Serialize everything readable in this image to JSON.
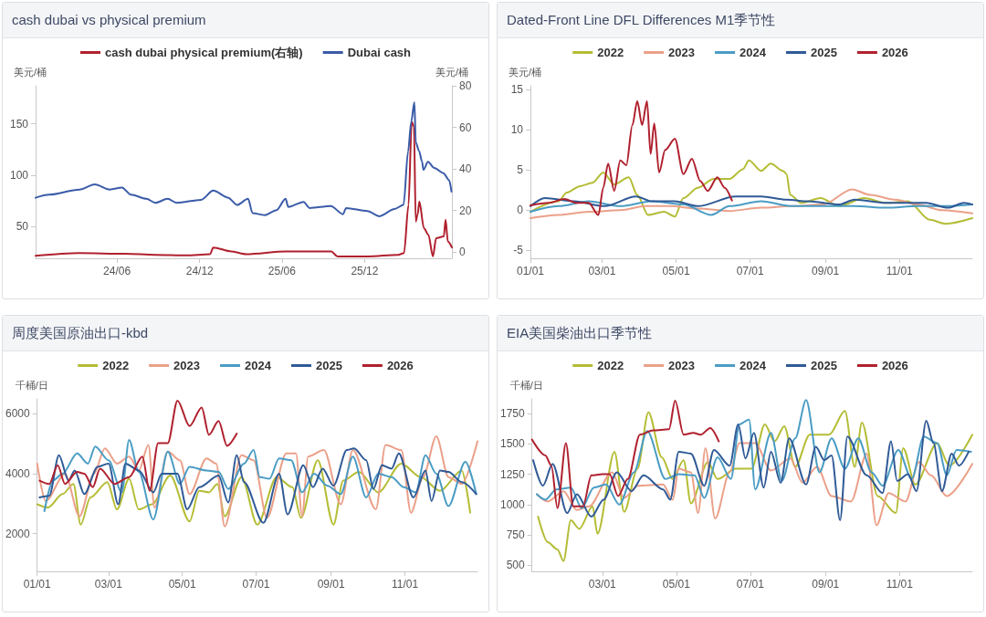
{
  "chart_data": [
    {
      "type": "line",
      "title": "cash dubai vs physical premium",
      "ylabel": "美元/桶",
      "y2label": "美元/桶",
      "legend": "top",
      "grid": false,
      "xlim": [
        "2023-12-04",
        "2026-06-12"
      ],
      "xticks": [
        {
          "value": "2024-06-01",
          "label": "24/06"
        },
        {
          "value": "2024-12-01",
          "label": "24/12"
        },
        {
          "value": "2025-06-01",
          "label": "25/06"
        },
        {
          "value": "2025-12-01",
          "label": "25/12"
        }
      ],
      "ylim": [
        19,
        187
      ],
      "yticks": [
        50,
        100,
        150
      ],
      "y2lim": [
        -3,
        80
      ],
      "y2ticks": [
        0,
        20,
        40,
        60,
        80
      ],
      "series": [
        {
          "name": "cash dubai physical premium(右轴)",
          "color": "#b0202e",
          "axis": "y2",
          "x": [
            "2023-12-04",
            "2024-03-10",
            "2024-06-19",
            "2024-08-25",
            "2024-11-01",
            "2024-12-24",
            "2024-12-31",
            "2025-02-09",
            "2025-03-14",
            "2025-06-10",
            "2025-09-18",
            "2025-10-02",
            "2025-12-08",
            "2026-02-13",
            "2026-02-26",
            "2026-03-08",
            "2026-03-15",
            "2026-03-20",
            "2026-03-24",
            "2026-03-28",
            "2026-04-01",
            "2026-04-11",
            "2026-04-21",
            "2026-05-01",
            "2026-05-08",
            "2026-05-25",
            "2026-05-29",
            "2026-06-03",
            "2026-06-12"
          ],
          "values": [
            -1.8,
            -0.5,
            -0.8,
            -1.3,
            -1.6,
            -1,
            2.2,
            0.3,
            -1,
            0.3,
            0.3,
            -2.1,
            -2.1,
            -1.3,
            -0.5,
            22.7,
            62.7,
            60.3,
            14.7,
            17.9,
            24.3,
            11.5,
            8.3,
            -2.1,
            6.7,
            7.5,
            15.5,
            5.1,
            2.2
          ]
        },
        {
          "name": "Dubai cash",
          "color": "#3a5ba8",
          "x": [
            "2023-12-04",
            "2024-01-03",
            "2024-03-10",
            "2024-04-13",
            "2024-05-16",
            "2024-06-12",
            "2024-07-02",
            "2024-08-05",
            "2024-08-25",
            "2024-09-21",
            "2024-10-11",
            "2024-12-04",
            "2024-12-31",
            "2025-02-02",
            "2025-02-22",
            "2025-03-18",
            "2025-03-28",
            "2025-04-24",
            "2025-05-20",
            "2025-06-09",
            "2025-06-15",
            "2025-07-19",
            "2025-08-01",
            "2025-09-17",
            "2025-10-14",
            "2025-10-21",
            "2025-12-07",
            "2026-01-03",
            "2026-02-05",
            "2026-02-25",
            "2026-03-07",
            "2026-03-14",
            "2026-03-21",
            "2026-03-24",
            "2026-03-31",
            "2026-04-07",
            "2026-04-10",
            "2026-04-20",
            "2026-05-04",
            "2026-05-24",
            "2026-06-06",
            "2026-06-11"
          ],
          "values": [
            78,
            81,
            86,
            91,
            86,
            88,
            81,
            77,
            73,
            77,
            73,
            76,
            85,
            78,
            71,
            77,
            63,
            61,
            66,
            77,
            69,
            74,
            68,
            70,
            62,
            68,
            65,
            60,
            67,
            71,
            123,
            152,
            171,
            132,
            124,
            113,
            105,
            113,
            107,
            102,
            95,
            84
          ]
        }
      ]
    },
    {
      "type": "line",
      "title": "Dated-Front Line DFL Differences M1季节性",
      "ylabel": "美元/桶",
      "legend": "top",
      "grid": false,
      "xlim": [
        "--01-01",
        "--12-31"
      ],
      "xticks": [
        {
          "value": "--01-01",
          "label": "01/01"
        },
        {
          "value": "--03-01",
          "label": "03/01"
        },
        {
          "value": "--05-01",
          "label": "05/01"
        },
        {
          "value": "--07-01",
          "label": "07/01"
        },
        {
          "value": "--09-01",
          "label": "09/01"
        },
        {
          "value": "--11-01",
          "label": "11/01"
        }
      ],
      "ylim": [
        -6,
        15.5
      ],
      "yticks": [
        -5,
        0,
        5,
        10,
        15
      ],
      "series": [
        {
          "name": "2022",
          "color": "#b4bd35",
          "x": [
            "--01-01",
            "--01-24",
            "--01-31",
            "--02-11",
            "--02-21",
            "--03-02",
            "--03-11",
            "--03-23",
            "--03-30",
            "--04-08",
            "--04-21",
            "--04-30",
            "--05-07",
            "--05-19",
            "--06-01",
            "--06-14",
            "--06-25",
            "--06-30",
            "--07-10",
            "--07-18",
            "--07-28",
            "--07-31",
            "--08-03",
            "--08-12",
            "--08-28",
            "--09-12",
            "--10-03",
            "--10-21",
            "--11-08",
            "--11-26",
            "--12-09",
            "--12-31"
          ],
          "values": [
            -0.2,
            1.1,
            2.2,
            3,
            3.4,
            4.7,
            3.2,
            4.1,
            1.9,
            -0.6,
            -0.2,
            -0.8,
            1.5,
            2.8,
            3.9,
            3.9,
            5.1,
            6.2,
            4.9,
            5.8,
            4.9,
            4.5,
            1.9,
            0.9,
            1.5,
            0.5,
            1.5,
            0.9,
            1.1,
            -1.2,
            -1.7,
            -1
          ]
        },
        {
          "name": "2023",
          "color": "#eba089",
          "x": [
            "--01-01",
            "--01-24",
            "--02-18",
            "--03-16",
            "--04-06",
            "--04-26",
            "--05-19",
            "--06-14",
            "--07-10",
            "--08-05",
            "--08-30",
            "--09-23",
            "--10-08",
            "--10-29",
            "--11-16",
            "--12-06",
            "--12-31"
          ],
          "values": [
            -1,
            -0.6,
            -0.2,
            0,
            0.5,
            0.5,
            0.2,
            -0.1,
            0.3,
            0.5,
            0.7,
            2.6,
            1.9,
            1.3,
            0.7,
            0,
            -0.4
          ]
        },
        {
          "name": "2024",
          "color": "#4a9cc4",
          "x": [
            "--01-01",
            "--01-24",
            "--02-18",
            "--03-16",
            "--04-11",
            "--05-07",
            "--05-30",
            "--06-14",
            "--07-10",
            "--08-05",
            "--08-30",
            "--09-25",
            "--10-21",
            "--11-16",
            "--12-11",
            "--12-31"
          ],
          "values": [
            -0.2,
            0.5,
            1.1,
            0.5,
            1.1,
            0.7,
            -0.6,
            0.5,
            1.1,
            0.5,
            0.5,
            0.5,
            0.3,
            0.5,
            0.5,
            0.7
          ]
        },
        {
          "name": "2025",
          "color": "#2f5a96",
          "x": [
            "--01-01",
            "--01-13",
            "--02-06",
            "--03-03",
            "--03-29",
            "--04-11",
            "--04-30",
            "--05-19",
            "--06-19",
            "--07-10",
            "--07-31",
            "--08-18",
            "--09-12",
            "--09-25",
            "--10-21",
            "--11-23",
            "--12-11",
            "--12-24",
            "--12-31"
          ],
          "values": [
            0.5,
            1.5,
            1.1,
            0.5,
            1.7,
            1.1,
            1.1,
            0.5,
            1.7,
            1.7,
            1.3,
            1.1,
            0.7,
            1.3,
            0.9,
            0.9,
            0.3,
            0.9,
            0.7
          ]
        },
        {
          "name": "2026",
          "color": "#b0202e",
          "x": [
            "--01-01",
            "--01-16",
            "--01-29",
            "--02-08",
            "--02-18",
            "--02-26",
            "--03-02",
            "--03-06",
            "--03-11",
            "--03-16",
            "--03-21",
            "--03-26",
            "--03-30",
            "--04-03",
            "--04-07",
            "--04-10",
            "--04-13",
            "--04-17",
            "--04-22",
            "--04-30",
            "--05-07",
            "--05-14",
            "--05-21",
            "--05-27",
            "--06-04",
            "--06-10",
            "--06-16"
          ],
          "values": [
            0.6,
            0.9,
            1.4,
            0.9,
            0.9,
            -0.6,
            2.8,
            5.8,
            2.4,
            6.2,
            5.6,
            10.6,
            13.6,
            10.6,
            13.6,
            7,
            10.8,
            4.7,
            7.5,
            8.9,
            4.5,
            6.4,
            3.6,
            2.4,
            4.1,
            2.8,
            1.2
          ]
        }
      ]
    },
    {
      "type": "line",
      "title": "周度美国原油出口-kbd",
      "ylabel": "千桶/日",
      "legend": "top",
      "grid": false,
      "xlim": [
        "--01-01",
        "--12-31"
      ],
      "xticks": [
        {
          "value": "--01-01",
          "label": "01/01"
        },
        {
          "value": "--03-01",
          "label": "03/01"
        },
        {
          "value": "--05-01",
          "label": "05/01"
        },
        {
          "value": "--07-01",
          "label": "07/01"
        },
        {
          "value": "--09-01",
          "label": "09/01"
        },
        {
          "value": "--11-01",
          "label": "11/01"
        }
      ],
      "ylim": [
        740,
        6500
      ],
      "yticks": [
        2000,
        4000,
        6000
      ],
      "series": [
        {
          "name": "2022",
          "color": "#b4bd35",
          "x": [
            "--01-01",
            "--01-10",
            "--01-22",
            "--01-31",
            "--02-06",
            "--02-14",
            "--02-28",
            "--03-08",
            "--03-18",
            "--03-26",
            "--04-06",
            "--04-21",
            "--05-07",
            "--05-15",
            "--05-23",
            "--05-30",
            "--06-05",
            "--06-19",
            "--07-02",
            "--07-18",
            "--07-31",
            "--08-07",
            "--08-21",
            "--09-03",
            "--09-11",
            "--09-24",
            "--10-10",
            "--10-29",
            "--11-14",
            "--11-30",
            "--12-18",
            "--12-25"
          ],
          "values": [
            2980,
            2870,
            3320,
            3660,
            2300,
            3210,
            3720,
            2810,
            3830,
            2810,
            2980,
            3940,
            2410,
            3430,
            3380,
            3660,
            2580,
            3890,
            2300,
            3890,
            3550,
            2530,
            4450,
            2300,
            3770,
            4060,
            3380,
            4340,
            3890,
            3430,
            4110,
            2700
          ]
        },
        {
          "name": "2023",
          "color": "#eba089",
          "x": [
            "--01-01",
            "--01-08",
            "--01-24",
            "--02-05",
            "--02-17",
            "--02-26",
            "--03-08",
            "--03-18",
            "--03-26",
            "--04-03",
            "--04-08",
            "--04-19",
            "--04-29",
            "--05-07",
            "--05-21",
            "--05-29",
            "--06-05",
            "--06-19",
            "--06-29",
            "--07-10",
            "--07-26",
            "--08-03",
            "--08-08",
            "--08-13",
            "--08-26",
            "--09-09",
            "--09-19",
            "--10-08",
            "--10-16",
            "--10-29",
            "--11-06",
            "--11-16",
            "--11-27",
            "--12-07",
            "--12-18",
            "--12-31"
          ],
          "values": [
            4340,
            3090,
            4000,
            2580,
            4000,
            4850,
            4340,
            4570,
            4110,
            4960,
            2870,
            4740,
            4450,
            3320,
            4510,
            4340,
            2240,
            4620,
            4450,
            2530,
            4680,
            4680,
            2580,
            4570,
            4790,
            2980,
            4790,
            2810,
            4960,
            4790,
            2700,
            3890,
            5250,
            3890,
            3660,
            5080
          ]
        },
        {
          "name": "2024",
          "color": "#4a9cc4",
          "x": [
            "--01-07",
            "--01-14",
            "--01-22",
            "--02-03",
            "--02-12",
            "--02-18",
            "--03-01",
            "--03-12",
            "--03-18",
            "--03-26",
            "--04-07",
            "--04-19",
            "--04-29",
            "--05-07",
            "--05-21",
            "--05-31",
            "--06-08",
            "--06-21",
            "--06-29",
            "--07-04",
            "--07-12",
            "--07-20",
            "--07-30",
            "--08-08",
            "--08-18",
            "--08-29",
            "--09-09",
            "--09-19",
            "--09-30",
            "--10-10",
            "--10-21",
            "--10-31",
            "--11-10",
            "--11-18",
            "--11-27",
            "--12-07",
            "--12-21",
            "--12-30"
          ],
          "values": [
            2750,
            3770,
            4000,
            4680,
            4340,
            4910,
            4450,
            3380,
            5130,
            4060,
            2470,
            4740,
            3660,
            4230,
            4110,
            4060,
            3490,
            4340,
            4790,
            3890,
            3830,
            4510,
            4450,
            3380,
            4000,
            3600,
            3320,
            4570,
            3210,
            4000,
            3890,
            3550,
            3380,
            4620,
            4000,
            2920,
            4400,
            3320
          ]
        },
        {
          "name": "2025",
          "color": "#2f5a96",
          "x": [
            "--01-03",
            "--01-11",
            "--01-19",
            "--01-27",
            "--02-01",
            "--02-09",
            "--02-20",
            "--03-01",
            "--03-09",
            "--03-15",
            "--03-26",
            "--04-07",
            "--04-14",
            "--04-27",
            "--05-05",
            "--05-15",
            "--05-31",
            "--06-08",
            "--06-15",
            "--06-21",
            "--07-07",
            "--07-20",
            "--07-27",
            "--08-09",
            "--08-17",
            "--08-25",
            "--09-03",
            "--09-14",
            "--09-20",
            "--09-30",
            "--10-06",
            "--10-13",
            "--10-21",
            "--10-27",
            "--11-08",
            "--11-18",
            "--11-23",
            "--11-30",
            "--12-07",
            "--12-18",
            "--12-30"
          ],
          "values": [
            3210,
            3260,
            4620,
            3770,
            4110,
            3320,
            4230,
            4340,
            2980,
            4340,
            4110,
            3380,
            4000,
            4000,
            2810,
            3550,
            3940,
            3040,
            4620,
            3720,
            2360,
            4000,
            2640,
            4280,
            3550,
            4170,
            3600,
            4790,
            4850,
            4450,
            3490,
            4280,
            4170,
            4680,
            3210,
            4110,
            3090,
            4110,
            4060,
            3720,
            3320
          ]
        },
        {
          "name": "2026",
          "color": "#b0202e",
          "x": [
            "--01-03",
            "--01-11",
            "--01-18",
            "--01-24",
            "--02-03",
            "--02-09",
            "--02-16",
            "--02-22",
            "--03-06",
            "--03-18",
            "--03-29",
            "--04-04",
            "--04-11",
            "--04-19",
            "--04-27",
            "--05-07",
            "--05-17",
            "--05-23",
            "--05-31",
            "--06-07",
            "--06-15"
          ],
          "values": [
            3770,
            3660,
            4280,
            3660,
            4060,
            4000,
            3550,
            4170,
            3660,
            3890,
            4570,
            3430,
            5020,
            5020,
            6440,
            5590,
            6210,
            5300,
            5760,
            4930,
            5340
          ]
        }
      ]
    },
    {
      "type": "line",
      "title": "EIA美国柴油出口季节性",
      "ylabel": "千桶/日",
      "legend": "top",
      "grid": false,
      "xlim": [
        "--01-02",
        "--12-31"
      ],
      "xticks": [
        {
          "value": "--03-01",
          "label": "03/01"
        },
        {
          "value": "--05-01",
          "label": "05/01"
        },
        {
          "value": "--07-01",
          "label": "07/01"
        },
        {
          "value": "--09-01",
          "label": "09/01"
        },
        {
          "value": "--11-01",
          "label": "11/01"
        }
      ],
      "ylim": [
        450,
        1870
      ],
      "yticks": [
        500,
        750,
        1000,
        1250,
        1500,
        1750
      ],
      "series": [
        {
          "name": "2022",
          "color": "#b4bd35",
          "x": [
            "--01-07",
            "--01-15",
            "--01-23",
            "--01-28",
            "--02-03",
            "--02-10",
            "--02-21",
            "--02-25",
            "--03-11",
            "--03-19",
            "--03-30",
            "--04-08",
            "--04-19",
            "--04-28",
            "--05-07",
            "--05-13",
            "--05-27",
            "--06-04",
            "--06-19",
            "--07-02",
            "--07-13",
            "--07-21",
            "--07-29",
            "--08-07",
            "--08-19",
            "--09-04",
            "--09-17",
            "--09-25",
            "--10-01",
            "--10-14",
            "--10-29",
            "--11-04",
            "--11-14",
            "--12-02",
            "--12-12",
            "--12-31"
          ],
          "values": [
            900,
            690,
            630,
            535,
            870,
            800,
            985,
            760,
            1435,
            940,
            1295,
            1760,
            1390,
            1210,
            1365,
            1010,
            1350,
            1210,
            1295,
            1295,
            1660,
            1520,
            1645,
            1310,
            1575,
            1575,
            1770,
            1310,
            1675,
            1070,
            930,
            1465,
            1165,
            1505,
            1320,
            1575
          ]
        },
        {
          "name": "2023",
          "color": "#eba089",
          "x": [
            "--01-06",
            "--01-15",
            "--01-28",
            "--02-08",
            "--02-18",
            "--03-09",
            "--03-19",
            "--03-30",
            "--04-20",
            "--04-28",
            "--05-03",
            "--05-13",
            "--05-19",
            "--05-25",
            "--06-02",
            "--06-14",
            "--06-22",
            "--07-05",
            "--07-18",
            "--08-03",
            "--08-13",
            "--08-25",
            "--09-06",
            "--09-22",
            "--10-05",
            "--10-13",
            "--10-23",
            "--11-06",
            "--11-17",
            "--11-27",
            "--12-10",
            "--12-31"
          ],
          "values": [
            1085,
            1025,
            1110,
            955,
            985,
            1265,
            1055,
            1155,
            1165,
            1040,
            1295,
            1265,
            930,
            1465,
            885,
            1265,
            1505,
            1505,
            1280,
            1380,
            1180,
            1310,
            1070,
            1025,
            1420,
            830,
            1095,
            1025,
            1350,
            1240,
            1070,
            1335
          ]
        },
        {
          "name": "2024",
          "color": "#4a9cc4",
          "x": [
            "--01-06",
            "--01-13",
            "--01-22",
            "--02-03",
            "--02-12",
            "--02-22",
            "--03-04",
            "--03-15",
            "--03-27",
            "--04-07",
            "--04-22",
            "--05-03",
            "--05-16",
            "--05-24",
            "--06-04",
            "--06-15",
            "--06-22",
            "--06-30",
            "--07-05",
            "--07-18",
            "--07-27",
            "--08-07",
            "--08-16",
            "--08-27",
            "--09-06",
            "--09-17",
            "--09-28",
            "--10-09",
            "--10-18",
            "--10-31",
            "--11-11",
            "--11-21",
            "--12-02",
            "--12-10",
            "--12-18",
            "--12-30"
          ],
          "values": [
            1085,
            1040,
            1125,
            1140,
            970,
            1140,
            1165,
            1000,
            1265,
            1605,
            1210,
            1250,
            1240,
            1055,
            1390,
            1210,
            1660,
            1700,
            1125,
            1590,
            1195,
            1545,
            1860,
            1265,
            1545,
            1295,
            1545,
            1265,
            1155,
            1450,
            1210,
            1560,
            1505,
            1240,
            1450,
            1435
          ]
        },
        {
          "name": "2025",
          "color": "#2f5a96",
          "x": [
            "--01-03",
            "--01-11",
            "--01-19",
            "--01-31",
            "--02-08",
            "--02-20",
            "--03-02",
            "--03-13",
            "--03-25",
            "--04-04",
            "--04-20",
            "--04-26",
            "--05-03",
            "--05-13",
            "--05-24",
            "--06-01",
            "--06-14",
            "--06-21",
            "--06-27",
            "--07-04",
            "--07-12",
            "--07-18",
            "--07-26",
            "--08-02",
            "--08-16",
            "--08-24",
            "--08-31",
            "--09-06",
            "--09-13",
            "--09-19",
            "--10-05",
            "--10-18",
            "--10-25",
            "--10-30",
            "--11-08",
            "--11-15",
            "--11-23",
            "--11-29",
            "--12-06",
            "--12-14",
            "--12-20",
            "--12-28"
          ],
          "values": [
            1365,
            1155,
            1335,
            930,
            1085,
            900,
            1040,
            1265,
            1110,
            1240,
            1125,
            1040,
            1435,
            1420,
            1155,
            1450,
            1320,
            1660,
            1380,
            1590,
            1140,
            1435,
            1180,
            1545,
            1165,
            1475,
            1365,
            1405,
            870,
            1560,
            1240,
            1095,
            1520,
            1195,
            1250,
            1110,
            1690,
            1505,
            1110,
            1420,
            1320,
            1435
          ]
        },
        {
          "name": "2026",
          "color": "#b0202e",
          "x": [
            "--01-02",
            "--01-13",
            "--01-18",
            "--01-23",
            "--01-30",
            "--02-05",
            "--02-13",
            "--02-20",
            "--03-01",
            "--03-07",
            "--03-14",
            "--03-22",
            "--04-01",
            "--04-12",
            "--04-25",
            "--04-30",
            "--05-07",
            "--05-15",
            "--05-21",
            "--05-29",
            "--06-05"
          ],
          "values": [
            1535,
            1405,
            1320,
            970,
            1505,
            985,
            985,
            1240,
            1250,
            1250,
            1070,
            1210,
            1575,
            1610,
            1620,
            1855,
            1575,
            1590,
            1575,
            1630,
            1520
          ]
        }
      ]
    }
  ]
}
